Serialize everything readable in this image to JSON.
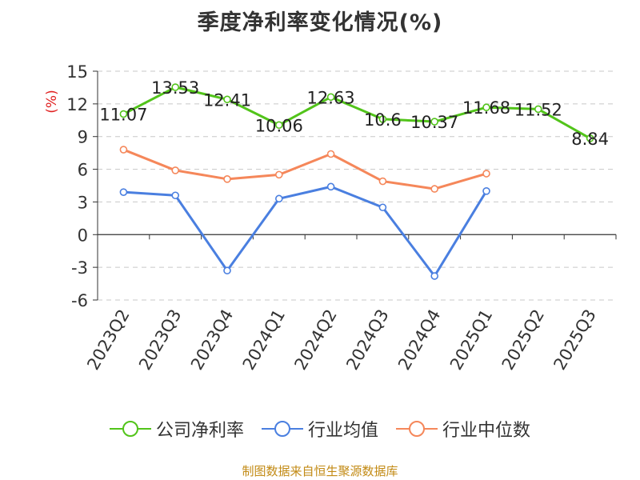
{
  "chart_data": {
    "type": "line",
    "title": "季度净利率变化情况(%)",
    "ylabel": "(%)",
    "categories": [
      "2023Q2",
      "2023Q3",
      "2023Q4",
      "2024Q1",
      "2024Q2",
      "2024Q3",
      "2024Q4",
      "2025Q1",
      "2025Q2",
      "2025Q3"
    ],
    "ylim": [
      -6,
      15
    ],
    "yticks": [
      "15",
      "12",
      "9",
      "6",
      "3",
      "0",
      "-3",
      "-6"
    ],
    "grid": true,
    "legend_position": "bottom",
    "series": [
      {
        "name": "公司净利率",
        "color": "#52c41a",
        "labels": true,
        "values": [
          11.07,
          13.53,
          12.41,
          10.06,
          12.63,
          10.6,
          10.37,
          11.68,
          11.52,
          8.84
        ]
      },
      {
        "name": "行业均值",
        "color": "#4a7fe0",
        "labels": false,
        "values": [
          3.9,
          3.6,
          -3.3,
          3.3,
          4.4,
          2.5,
          -3.8,
          4.0,
          null,
          null
        ]
      },
      {
        "name": "行业中位数",
        "color": "#f5875a",
        "labels": false,
        "values": [
          7.8,
          5.9,
          5.1,
          5.5,
          7.4,
          4.9,
          4.2,
          5.6,
          null,
          null
        ]
      }
    ]
  },
  "footer": {
    "source": "制图数据来自恒生聚源数据库"
  }
}
